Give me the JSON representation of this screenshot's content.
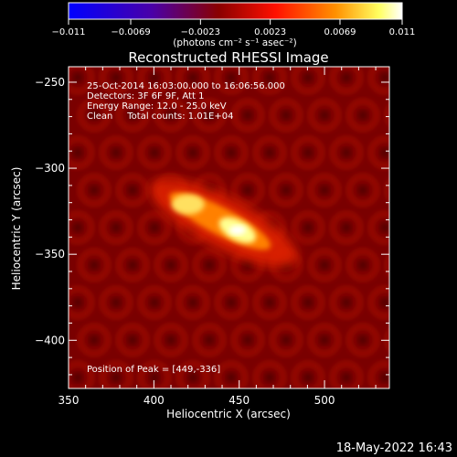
{
  "chart_data": {
    "type": "heatmap",
    "title": "Reconstructed RHESSI Image",
    "xlabel": "Heliocentric X (arcsec)",
    "ylabel": "Heliocentric Y (arcsec)",
    "xlim": [
      350,
      538
    ],
    "ylim": [
      -428,
      -241
    ],
    "x_ticks": [
      350,
      400,
      450,
      500
    ],
    "y_ticks": [
      -250,
      -300,
      -350,
      -400
    ],
    "colorbar": {
      "min": -0.011,
      "max": 0.011,
      "tick_values": [
        -0.011,
        -0.0069,
        -0.0023,
        0.0023,
        0.0069,
        0.011
      ],
      "tick_labels": [
        "−0.011",
        "−0.0069",
        "−0.0023",
        "0.0023",
        "0.0069",
        "0.011"
      ],
      "unit_label": "(photons cm⁻² s⁻¹ asec⁻²)",
      "colors": [
        "#0000ff",
        "#5000a0",
        "#8a0000",
        "#ff0000",
        "#ff8000",
        "#ffff80",
        "#ffffff"
      ]
    },
    "info_lines": [
      "25-Oct-2014 16:03:00.000 to 16:06:56.000",
      "Detectors: 3F 6F 9F, Att 1",
      "Energy Range: 12.0 - 25.0 keV",
      "Clean     Total counts: 1.01E+04"
    ],
    "peak_label": "Position of Peak = [449,-336]",
    "peak": [
      449,
      -336
    ],
    "sources": [
      {
        "x": 449,
        "y": -336,
        "value": 0.011
      },
      {
        "x": 420,
        "y": -321,
        "value": 0.0092
      }
    ]
  },
  "timestamp": "18-May-2022 16:43"
}
